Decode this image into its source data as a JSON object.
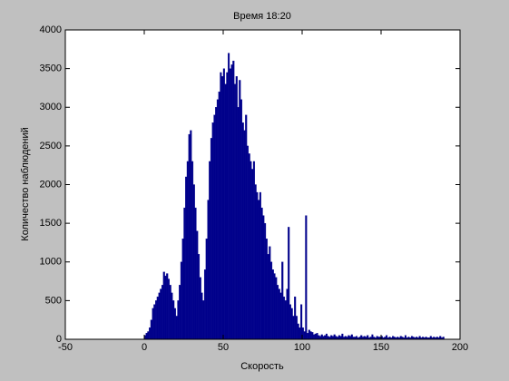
{
  "chart_data": {
    "type": "histogram",
    "title": "Время 18:20",
    "x_label": "Скорость",
    "y_label": "Количество наблюдений",
    "color": "#00008b",
    "bins": [
      0,
      1,
      2,
      3,
      4,
      5,
      6,
      7,
      8,
      9,
      10,
      11,
      12,
      13,
      14,
      15,
      16,
      17,
      18,
      19,
      20,
      21,
      22,
      23,
      24,
      25,
      26,
      27,
      28,
      29,
      30,
      31,
      32,
      33,
      34,
      35,
      36,
      37,
      38,
      39,
      40,
      41,
      42,
      43,
      44,
      45,
      46,
      47,
      48,
      49,
      50,
      51,
      52,
      53,
      54,
      55,
      56,
      57,
      58,
      59,
      60,
      61,
      62,
      63,
      64,
      65,
      66,
      67,
      68,
      69,
      70,
      71,
      72,
      73,
      74,
      75,
      76,
      77,
      78,
      79,
      80,
      81,
      82,
      83,
      84,
      85,
      86,
      87,
      88,
      89,
      90,
      91,
      92,
      93,
      94,
      95,
      96,
      97,
      98,
      99,
      100,
      101,
      102,
      103,
      104,
      105,
      106,
      107,
      108,
      109,
      110,
      111,
      112,
      113,
      114,
      115,
      116,
      117,
      118,
      119,
      120,
      121,
      122,
      123,
      124,
      125,
      126,
      127,
      128,
      129,
      130,
      131,
      132,
      133,
      134,
      135,
      136,
      137,
      138,
      139,
      140,
      141,
      142,
      143,
      144,
      145,
      146,
      147,
      148,
      149,
      150,
      151,
      152,
      153,
      154,
      155,
      156,
      157,
      158,
      159,
      160,
      161,
      162,
      163,
      164,
      165,
      166,
      167,
      168,
      169,
      170,
      171,
      172,
      173,
      174,
      175,
      176,
      177,
      178,
      179,
      180,
      181,
      182,
      183,
      184,
      185,
      186,
      187,
      188,
      189,
      190
    ],
    "values": [
      50,
      80,
      100,
      150,
      250,
      400,
      450,
      500,
      550,
      600,
      650,
      700,
      870,
      820,
      850,
      780,
      700,
      600,
      500,
      400,
      300,
      500,
      700,
      1000,
      1300,
      1700,
      2100,
      2300,
      2650,
      2700,
      2300,
      2000,
      1700,
      1400,
      1100,
      800,
      600,
      500,
      900,
      1300,
      1800,
      2300,
      2600,
      2800,
      2900,
      3000,
      3100,
      3200,
      3450,
      3400,
      3500,
      3300,
      3450,
      3700,
      3500,
      3550,
      3600,
      3300,
      3400,
      3000,
      3350,
      3100,
      2800,
      2700,
      2900,
      2500,
      2400,
      2300,
      2200,
      2300,
      2000,
      1900,
      1800,
      1900,
      1700,
      1600,
      1500,
      1300,
      1100,
      1200,
      1000,
      900,
      850,
      800,
      700,
      650,
      600,
      1000,
      550,
      500,
      650,
      1450,
      450,
      400,
      300,
      550,
      300,
      200,
      150,
      450,
      150,
      100,
      1600,
      80,
      120,
      100,
      90,
      60,
      70,
      80,
      50,
      40,
      60,
      40,
      50,
      70,
      40,
      30,
      50,
      40,
      60,
      40,
      30,
      50,
      40,
      70,
      30,
      40,
      30,
      50,
      40,
      60,
      30,
      30,
      40,
      20,
      30,
      50,
      30,
      40,
      30,
      50,
      20,
      30,
      60,
      30,
      20,
      40,
      30,
      30,
      40,
      20,
      30,
      50,
      20,
      30,
      20,
      40,
      30,
      20,
      30,
      20,
      40,
      30,
      20,
      50,
      20,
      30,
      20,
      40,
      30,
      20,
      30,
      20,
      40,
      20,
      30,
      20,
      30,
      20,
      20,
      40,
      20,
      30,
      20,
      30,
      20,
      40,
      20,
      30
    ],
    "xlim": [
      -50,
      200
    ],
    "xticks": [
      -50,
      0,
      50,
      100,
      150,
      200
    ],
    "ylim": [
      0,
      4000
    ],
    "yticks": [
      0,
      500,
      1000,
      1500,
      2000,
      2500,
      3000,
      3500,
      4000
    ]
  }
}
